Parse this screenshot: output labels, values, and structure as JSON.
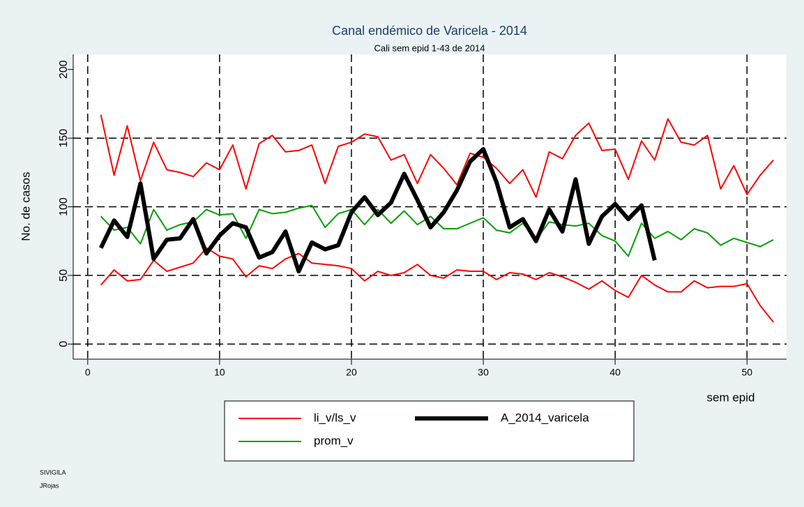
{
  "chart_data": {
    "type": "line",
    "title": "Canal endémico de Varicela - 2014",
    "subtitle": "Cali sem epid 1-43 de 2014",
    "x_label": "sem epid",
    "y_label": "No. de casos",
    "notes": [
      "SIVIGILA",
      "JRojas"
    ],
    "x": [
      1,
      2,
      3,
      4,
      5,
      6,
      7,
      8,
      9,
      10,
      11,
      12,
      13,
      14,
      15,
      16,
      17,
      18,
      19,
      20,
      21,
      22,
      23,
      24,
      25,
      26,
      27,
      28,
      29,
      30,
      31,
      32,
      33,
      34,
      35,
      36,
      37,
      38,
      39,
      40,
      41,
      42,
      43,
      44,
      45,
      46,
      47,
      48,
      49,
      50,
      51,
      52
    ],
    "series": [
      {
        "name": "li_v/ls_v",
        "color": "#ff0000",
        "upper": [
          167,
          123,
          159,
          119,
          147,
          127,
          125,
          122,
          132,
          127,
          145,
          113,
          146,
          152,
          140,
          141,
          145,
          117,
          144,
          147,
          153,
          151,
          134,
          138,
          117,
          138,
          128,
          116,
          139,
          136,
          128,
          117,
          127,
          107,
          140,
          135,
          152,
          161,
          141,
          142,
          120,
          148,
          134,
          164,
          147,
          145,
          152,
          113,
          130,
          109,
          123,
          134
        ],
        "lower": [
          43,
          54,
          46,
          47,
          61,
          53,
          56,
          59,
          70,
          64,
          62,
          49,
          57,
          55,
          62,
          66,
          59,
          58,
          57,
          55,
          46,
          53,
          50,
          52,
          58,
          50,
          48,
          54,
          53,
          53,
          47,
          52,
          51,
          47,
          52,
          49,
          45,
          40,
          46,
          39,
          34,
          50,
          43,
          38,
          38,
          46,
          41,
          42,
          42,
          44,
          28,
          16
        ]
      },
      {
        "name": "A_2014_varicela",
        "color": "#000000",
        "values": [
          70,
          90,
          78,
          117,
          62,
          76,
          77,
          91,
          66,
          79,
          88,
          85,
          63,
          67,
          82,
          53,
          74,
          69,
          72,
          96,
          107,
          94,
          103,
          124,
          105,
          85,
          96,
          112,
          133,
          142,
          118,
          85,
          91,
          75,
          98,
          82,
          120,
          73,
          93,
          102,
          91,
          101,
          61,
          null,
          null,
          null,
          null,
          null,
          null,
          null,
          null,
          null
        ]
      },
      {
        "name": "prom_v",
        "color": "#00a000",
        "values": [
          93,
          83,
          85,
          73,
          98,
          83,
          87,
          89,
          98,
          94,
          95,
          77,
          98,
          95,
          96,
          99,
          101,
          85,
          95,
          98,
          87,
          98,
          88,
          97,
          87,
          93,
          84,
          84,
          88,
          92,
          83,
          81,
          88,
          76,
          89,
          87,
          86,
          88,
          79,
          75,
          64,
          88,
          77,
          82,
          76,
          84,
          81,
          72,
          77,
          74,
          71,
          76
        ]
      }
    ],
    "xlim": [
      -1.1,
      53
    ],
    "ylim": [
      -11,
      211
    ],
    "xticks": [
      0,
      10,
      20,
      30,
      40,
      50
    ],
    "yticks": [
      0,
      50,
      100,
      150,
      200
    ],
    "xgrid": [
      0,
      10,
      20,
      30,
      40,
      50
    ],
    "ygrid": [
      0,
      50,
      100,
      150
    ]
  }
}
